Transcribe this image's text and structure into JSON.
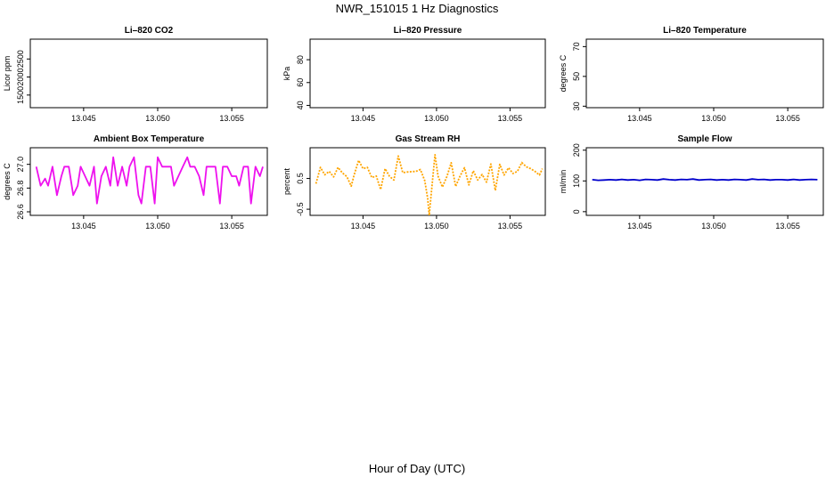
{
  "title": "NWR_151015  1 Hz Diagnostics",
  "xlabel": "Hour of Day (UTC)",
  "chart_data": [
    {
      "type": "line",
      "title": "Li–820 CO2",
      "ylabel": "Licor ppm",
      "xlim": [
        13.0414,
        13.0574
      ],
      "ylim": [
        1150,
        3050
      ],
      "xticks": [
        13.045,
        13.05,
        13.055
      ],
      "xtick_labels": [
        "13.045",
        "13.050",
        "13.055"
      ],
      "yticks": [
        1500,
        2000,
        2500
      ],
      "ytick_labels": [
        "1500",
        "2000",
        "2500"
      ],
      "color": "#000000",
      "series": []
    },
    {
      "type": "line",
      "title": "Li–820 Pressure",
      "ylabel": "kPa",
      "xlim": [
        13.0414,
        13.0574
      ],
      "ylim": [
        38,
        98
      ],
      "xticks": [
        13.045,
        13.05,
        13.055
      ],
      "xtick_labels": [
        "13.045",
        "13.050",
        "13.055"
      ],
      "yticks": [
        40,
        60,
        80
      ],
      "ytick_labels": [
        "40",
        "60",
        "80"
      ],
      "color": "#000000",
      "series": []
    },
    {
      "type": "line",
      "title": "Li–820 Temperature",
      "ylabel": "degrees C",
      "xlim": [
        13.0414,
        13.0574
      ],
      "ylim": [
        29,
        75
      ],
      "xticks": [
        13.045,
        13.05,
        13.055
      ],
      "xtick_labels": [
        "13.045",
        "13.050",
        "13.055"
      ],
      "yticks": [
        30,
        50,
        70
      ],
      "ytick_labels": [
        "30",
        "50",
        "70"
      ],
      "color": "#000000",
      "series": []
    },
    {
      "type": "line",
      "title": "Ambient Box Temperature",
      "ylabel": "degrees C",
      "xlim": [
        13.0414,
        13.0574
      ],
      "ylim": [
        26.57,
        27.14
      ],
      "xticks": [
        13.045,
        13.05,
        13.055
      ],
      "xtick_labels": [
        "13.045",
        "13.050",
        "13.055"
      ],
      "yticks": [
        26.6,
        26.8,
        27.0
      ],
      "ytick_labels": [
        "26.6",
        "26.8",
        "27.0"
      ],
      "color": "#ee11ee",
      "dashed": false,
      "x": [
        13.0418,
        13.0421,
        13.0424,
        13.0426,
        13.0429,
        13.0432,
        13.0435,
        13.0437,
        13.044,
        13.0443,
        13.0446,
        13.0448,
        13.0451,
        13.0454,
        13.0457,
        13.0459,
        13.0462,
        13.0465,
        13.0468,
        13.047,
        13.0473,
        13.0476,
        13.0479,
        13.0481,
        13.0484,
        13.0487,
        13.0489,
        13.0492,
        13.0495,
        13.0498,
        13.05,
        13.0503,
        13.0506,
        13.0509,
        13.0511,
        13.0514,
        13.0517,
        13.052,
        13.0522,
        13.0525,
        13.0528,
        13.0531,
        13.0533,
        13.0536,
        13.0539,
        13.0542,
        13.0544,
        13.0547,
        13.055,
        13.0553,
        13.0555,
        13.0558,
        13.0561,
        13.0563,
        13.0566,
        13.0569,
        13.0571
      ],
      "y": [
        26.98,
        26.82,
        26.88,
        26.82,
        26.98,
        26.74,
        26.9,
        26.98,
        26.98,
        26.74,
        26.82,
        26.98,
        26.9,
        26.82,
        26.98,
        26.67,
        26.9,
        26.98,
        26.82,
        27.06,
        26.82,
        26.98,
        26.82,
        26.98,
        27.06,
        26.74,
        26.67,
        26.98,
        26.98,
        26.67,
        27.06,
        26.98,
        26.98,
        26.98,
        26.82,
        26.9,
        26.98,
        27.06,
        26.98,
        26.98,
        26.9,
        26.74,
        26.98,
        26.98,
        26.98,
        26.67,
        26.98,
        26.98,
        26.9,
        26.9,
        26.82,
        26.98,
        26.98,
        26.67,
        26.98,
        26.9,
        26.98
      ]
    },
    {
      "type": "line",
      "title": "Gas Stream RH",
      "ylabel": "percent",
      "xlim": [
        13.0414,
        13.0574
      ],
      "ylim": [
        -0.7,
        1.5
      ],
      "xticks": [
        13.045,
        13.05,
        13.055
      ],
      "xtick_labels": [
        "13.045",
        "13.050",
        "13.055"
      ],
      "yticks": [
        -0.5,
        0.5
      ],
      "ytick_labels": [
        "-0.5",
        "0.5"
      ],
      "color": "#ffa500",
      "dashed": true,
      "x": [
        13.0418,
        13.0421,
        13.0424,
        13.0427,
        13.043,
        13.0433,
        13.0436,
        13.0439,
        13.0442,
        13.0444,
        13.0447,
        13.045,
        13.0453,
        13.0456,
        13.0459,
        13.0462,
        13.0465,
        13.0468,
        13.0471,
        13.0474,
        13.0477,
        13.048,
        13.0483,
        13.0486,
        13.0489,
        13.0492,
        13.0494,
        13.0495,
        13.0497,
        13.0499,
        13.0501,
        13.0504,
        13.0507,
        13.051,
        13.0513,
        13.0516,
        13.0519,
        13.0522,
        13.0525,
        13.0528,
        13.0531,
        13.0534,
        13.0537,
        13.054,
        13.0543,
        13.0546,
        13.0549,
        13.0552,
        13.0555,
        13.0558,
        13.0561,
        13.0564,
        13.0567,
        13.057,
        13.0572
      ],
      "y": [
        0.33,
        0.86,
        0.62,
        0.73,
        0.55,
        0.86,
        0.68,
        0.56,
        0.25,
        0.62,
        1.09,
        0.82,
        0.86,
        0.53,
        0.58,
        0.14,
        0.82,
        0.57,
        0.45,
        1.23,
        0.69,
        0.71,
        0.72,
        0.73,
        0.79,
        0.43,
        -0.15,
        -0.7,
        0.31,
        1.27,
        0.58,
        0.22,
        0.56,
        1.01,
        0.24,
        0.58,
        0.85,
        0.29,
        0.75,
        0.45,
        0.63,
        0.38,
        0.97,
        0.11,
        0.96,
        0.61,
        0.85,
        0.66,
        0.73,
        1.02,
        0.88,
        0.82,
        0.73,
        0.61,
        0.82
      ]
    },
    {
      "type": "line",
      "title": "Sample Flow",
      "ylabel": "ml/min",
      "xlim": [
        13.0414,
        13.0574
      ],
      "ylim": [
        -12,
        208
      ],
      "xticks": [
        13.045,
        13.05,
        13.055
      ],
      "xtick_labels": [
        "13.045",
        "13.050",
        "13.055"
      ],
      "yticks": [
        0,
        100,
        200
      ],
      "ytick_labels": [
        "0",
        "100",
        "200"
      ],
      "color": "#0000cc",
      "dashed": false,
      "x": [
        13.0418,
        13.0422,
        13.0426,
        13.043,
        13.0434,
        13.0438,
        13.0442,
        13.0446,
        13.045,
        13.0454,
        13.0458,
        13.0462,
        13.0466,
        13.047,
        13.0474,
        13.0478,
        13.0482,
        13.0486,
        13.049,
        13.0494,
        13.0498,
        13.0502,
        13.0506,
        13.051,
        13.0514,
        13.0518,
        13.0522,
        13.0526,
        13.053,
        13.0534,
        13.0538,
        13.0542,
        13.0546,
        13.055,
        13.0554,
        13.0558,
        13.0562,
        13.0566,
        13.057
      ],
      "y": [
        104,
        102,
        103,
        104,
        103,
        105,
        103,
        104,
        102,
        105,
        104,
        103,
        106,
        104,
        103,
        105,
        104,
        106,
        103,
        104,
        105,
        103,
        104,
        103,
        105,
        104,
        103,
        106,
        104,
        105,
        103,
        104,
        104,
        103,
        105,
        103,
        104,
        105,
        104
      ]
    }
  ]
}
